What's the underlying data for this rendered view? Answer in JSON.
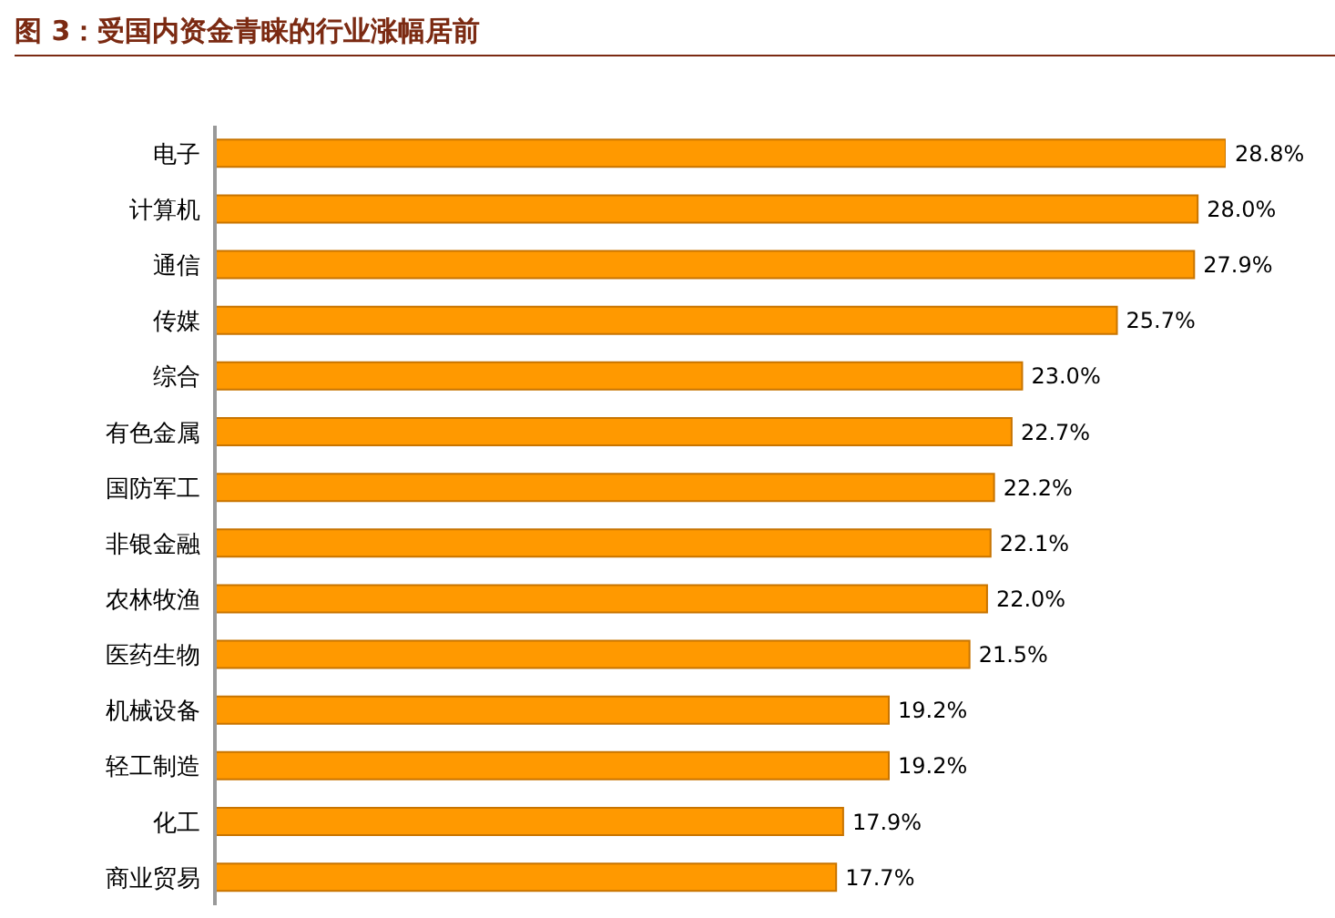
{
  "chart_data": {
    "type": "bar",
    "title": "图 3：受国内资金青睐的行业涨幅居前",
    "orientation": "horizontal",
    "categories": [
      "电子",
      "计算机",
      "通信",
      "传媒",
      "综合",
      "有色金属",
      "国防军工",
      "非银金融",
      "农林牧渔",
      "医药生物",
      "机械设备",
      "轻工制造",
      "化工",
      "商业贸易"
    ],
    "values": [
      28.8,
      28.0,
      27.9,
      25.7,
      23.0,
      22.7,
      22.2,
      22.1,
      22.0,
      21.5,
      19.2,
      19.2,
      17.9,
      17.7
    ],
    "value_labels": [
      "28.8%",
      "28.0%",
      "27.9%",
      "25.7%",
      "23.0%",
      "22.7%",
      "22.2%",
      "22.1%",
      "22.0%",
      "21.5%",
      "19.2%",
      "19.2%",
      "17.9%",
      "17.7%"
    ],
    "color": "#ff9900"
  }
}
